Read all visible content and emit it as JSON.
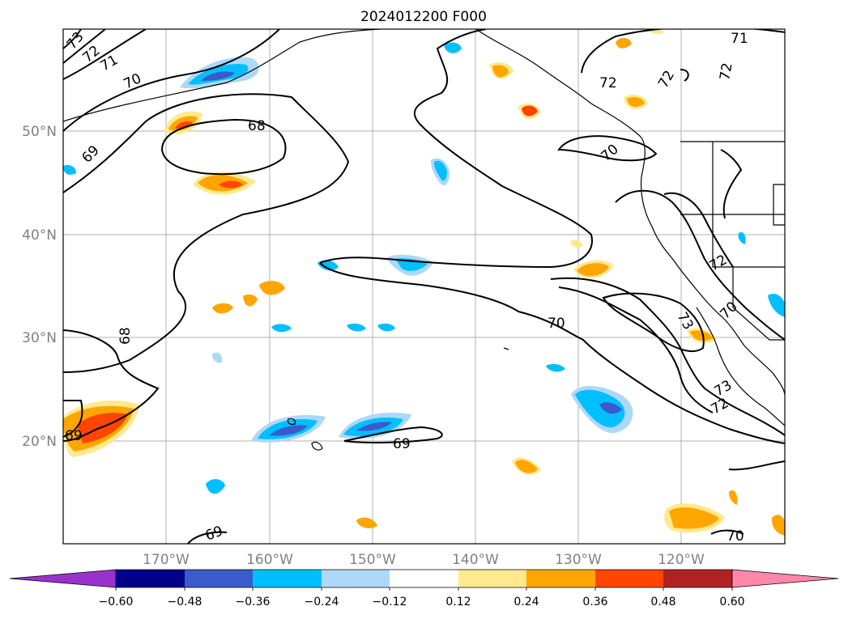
{
  "title": "2024012200 F000",
  "map": {
    "lat_labels": [
      "50°N",
      "40°N",
      "30°N",
      "20°N"
    ],
    "lon_labels": [
      "170°W",
      "160°W",
      "150°W",
      "140°W",
      "130°W",
      "120°W"
    ],
    "contour_labels": [
      "73",
      "72",
      "71",
      "70",
      "68",
      "69",
      "72",
      "71",
      "72",
      "72",
      "70",
      "70",
      "72",
      "73",
      "70",
      "68",
      "73",
      "72",
      "69",
      "69",
      "69",
      "70"
    ]
  },
  "colorbar": {
    "ticks": [
      "−0.60",
      "−0.48",
      "−0.36",
      "−0.24",
      "−0.12",
      "0.12",
      "0.24",
      "0.36",
      "0.48",
      "0.60"
    ],
    "colors": [
      "#9932cc",
      "#00008b",
      "#3a5bcc",
      "#00bfff",
      "#add8f7",
      "#ffffff",
      "#ffe98c",
      "#ffa500",
      "#ff4500",
      "#b22222",
      "#ff88aa"
    ]
  }
}
